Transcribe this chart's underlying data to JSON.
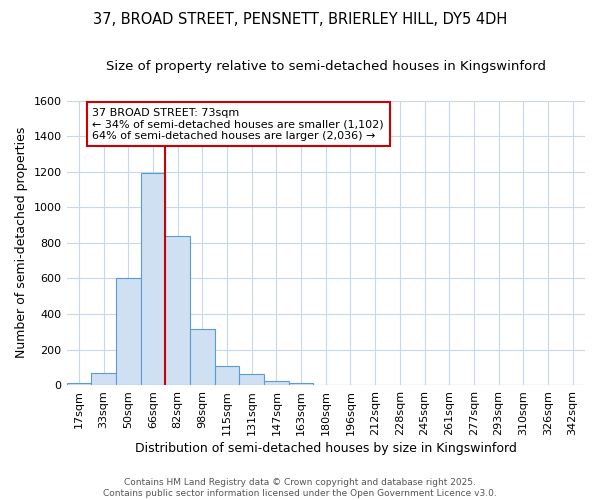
{
  "title": "37, BROAD STREET, PENSNETT, BRIERLEY HILL, DY5 4DH",
  "subtitle": "Size of property relative to semi-detached houses in Kingswinford",
  "xlabel": "Distribution of semi-detached houses by size in Kingswinford",
  "ylabel": "Number of semi-detached properties",
  "categories": [
    "17sqm",
    "33sqm",
    "50sqm",
    "66sqm",
    "82sqm",
    "98sqm",
    "115sqm",
    "131sqm",
    "147sqm",
    "163sqm",
    "180sqm",
    "196sqm",
    "212sqm",
    "228sqm",
    "245sqm",
    "261sqm",
    "277sqm",
    "293sqm",
    "310sqm",
    "326sqm",
    "342sqm"
  ],
  "values": [
    10,
    70,
    600,
    1190,
    840,
    315,
    110,
    60,
    25,
    10,
    0,
    0,
    0,
    0,
    0,
    0,
    0,
    0,
    0,
    0,
    0
  ],
  "bar_color": "#cfe0f3",
  "bar_edge_color": "#5b9bd5",
  "vline_color": "#cc0000",
  "ylim": [
    0,
    1600
  ],
  "yticks": [
    0,
    200,
    400,
    600,
    800,
    1000,
    1200,
    1400,
    1600
  ],
  "annotation_line1": "37 BROAD STREET: 73sqm",
  "annotation_line2": "← 34% of semi-detached houses are smaller (1,102)",
  "annotation_line3": "64% of semi-detached houses are larger (2,036) →",
  "annotation_box_edge_color": "#cc0000",
  "annotation_box_face_color": "#ffffff",
  "footnote_line1": "Contains HM Land Registry data © Crown copyright and database right 2025.",
  "footnote_line2": "Contains public sector information licensed under the Open Government Licence v3.0.",
  "background_color": "#ffffff",
  "grid_color": "#c8d8ea",
  "title_fontsize": 10.5,
  "subtitle_fontsize": 9.5,
  "axis_label_fontsize": 9,
  "tick_fontsize": 8,
  "annotation_fontsize": 8,
  "footnote_fontsize": 6.5
}
